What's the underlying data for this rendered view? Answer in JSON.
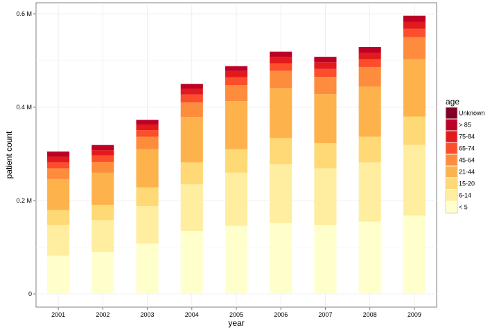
{
  "chart_data": {
    "type": "bar",
    "stacked": true,
    "title": "",
    "xlabel": "year",
    "ylabel": "patient count",
    "ylim": [
      0,
      600000
    ],
    "yticks": [
      0,
      200000,
      400000,
      600000
    ],
    "ytick_labels": [
      "0",
      "0.2 M",
      "0.4 M",
      "0.6 M"
    ],
    "grid": true,
    "legend_title": "age",
    "legend_position": "right",
    "categories": [
      "2001",
      "2002",
      "2003",
      "2004",
      "2005",
      "2006",
      "2007",
      "2008",
      "2009"
    ],
    "series": [
      {
        "name": "< 5",
        "color": "#FFFFCC",
        "values": [
          82000,
          90000,
          108000,
          135000,
          146000,
          152000,
          148000,
          155000,
          168000
        ]
      },
      {
        "name": "6-14",
        "color": "#FFEDA0",
        "values": [
          66000,
          68000,
          80000,
          100000,
          114000,
          126000,
          121000,
          127000,
          151000
        ]
      },
      {
        "name": "15-20",
        "color": "#FED976",
        "values": [
          32000,
          33000,
          40000,
          47000,
          50000,
          56000,
          54000,
          55000,
          61000
        ]
      },
      {
        "name": "21-44",
        "color": "#FEB24C",
        "values": [
          66000,
          69000,
          82000,
          97000,
          103000,
          107000,
          105000,
          107000,
          123000
        ]
      },
      {
        "name": "45-64",
        "color": "#FD8D3C",
        "values": [
          23000,
          23000,
          27000,
          31000,
          34000,
          37000,
          37000,
          42000,
          47000
        ]
      },
      {
        "name": "65-74",
        "color": "#FC4E2A",
        "values": [
          13000,
          14000,
          14000,
          17000,
          17000,
          16000,
          17000,
          17000,
          18000
        ]
      },
      {
        "name": "75-84",
        "color": "#E31A1C",
        "values": [
          12000,
          11000,
          12000,
          13000,
          14000,
          14000,
          14000,
          14000,
          15000
        ]
      },
      {
        "name": "> 85",
        "color": "#BD0026",
        "values": [
          11000,
          11000,
          10000,
          10000,
          10000,
          11000,
          12000,
          12000,
          13000
        ]
      },
      {
        "name": "Unknown",
        "color": "#800026",
        "values": [
          0,
          0,
          0,
          0,
          0,
          0,
          0,
          0,
          0
        ]
      }
    ]
  }
}
